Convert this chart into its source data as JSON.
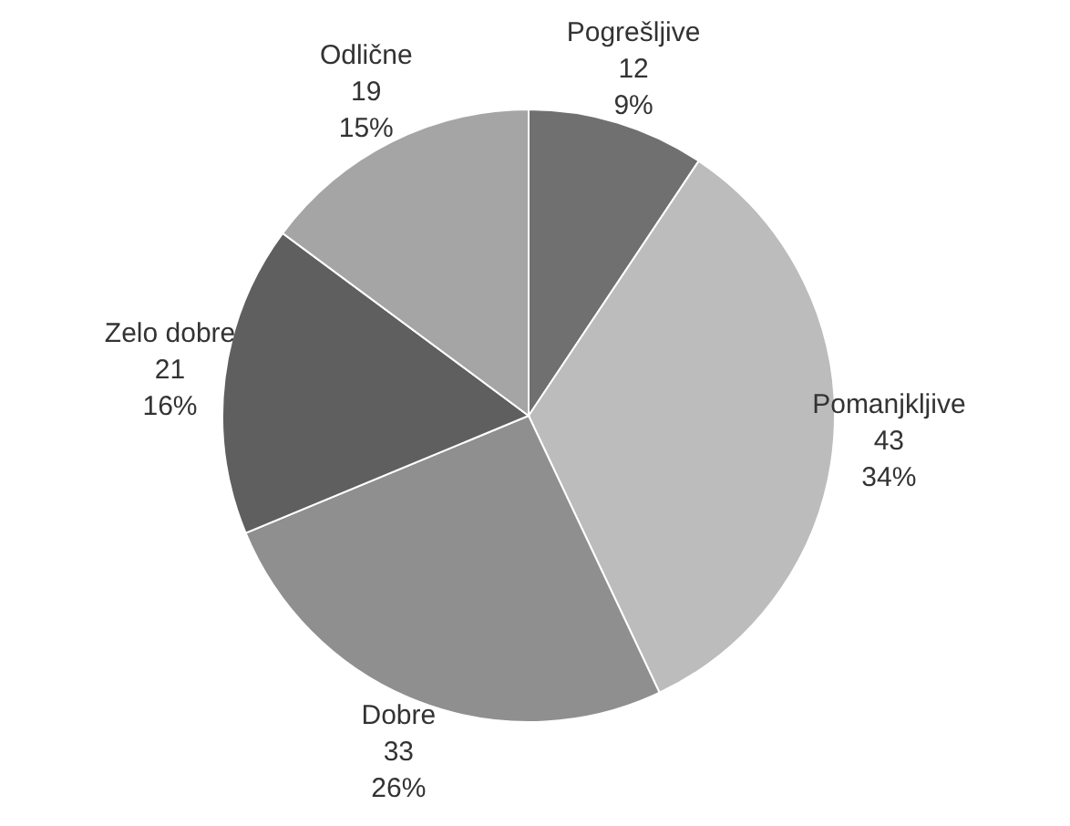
{
  "chart_data": {
    "type": "pie",
    "categories": [
      "Pogrešljive",
      "Pomanjkljive",
      "Dobre",
      "Zelo dobre",
      "Odlične"
    ],
    "values": [
      12,
      43,
      33,
      21,
      19
    ],
    "colors": [
      "#707070",
      "#bcbcbc",
      "#8f8f8f",
      "#5f5f5f",
      "#a5a5a5"
    ],
    "value_labels": [
      "12\n9%",
      "43\n34%",
      "33\n26%",
      "21\n16%",
      "19\n15%"
    ]
  }
}
